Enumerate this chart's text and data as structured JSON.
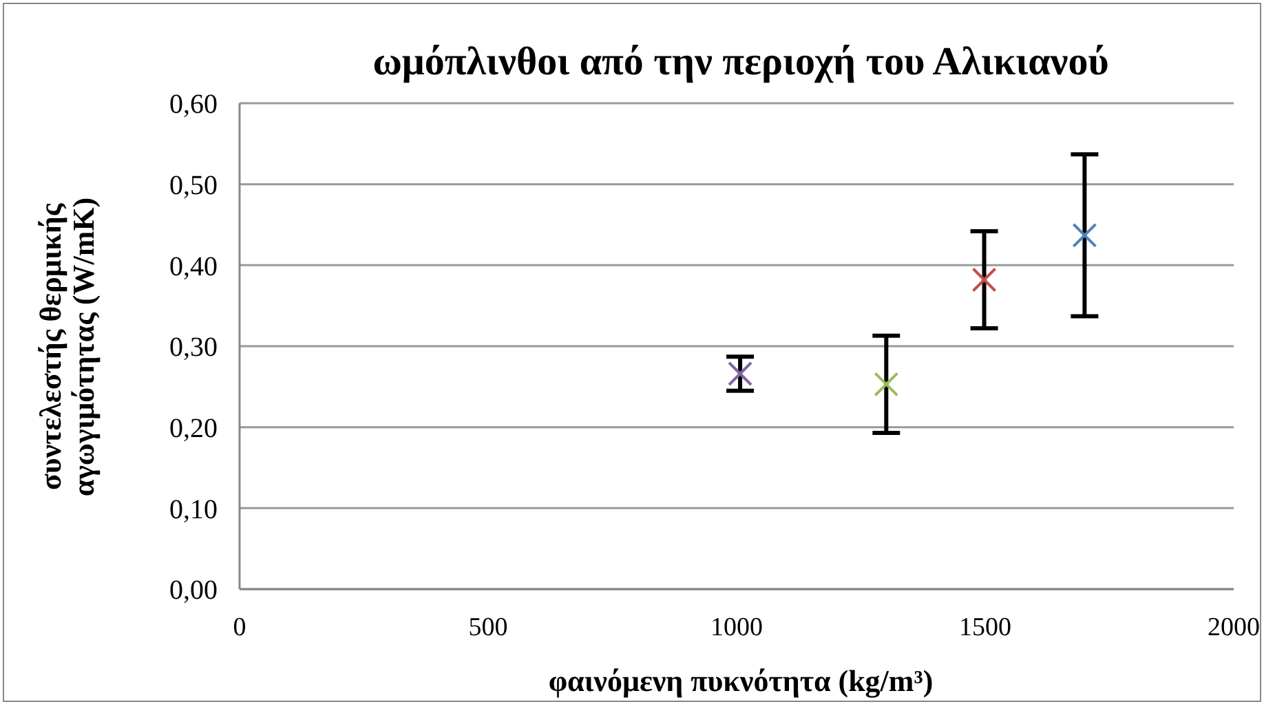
{
  "chart_data": {
    "type": "scatter",
    "title": "ωμόπλινθοι από την περιοχή του Αλικιανού",
    "xlabel": "φαινόμενη πυκνότητα    (kg/m³)",
    "ylabel": "συντελεστής θερμικής\nαγωγιμότητας   (W/mK)",
    "x": [
      1007,
      1301,
      1498,
      1700
    ],
    "values": [
      0.266,
      0.253,
      0.382,
      0.437
    ],
    "errors": [
      0.021,
      0.06,
      0.06,
      0.1
    ],
    "colors": [
      "#8064a2",
      "#9bbb59",
      "#c0504d",
      "#4f81bd"
    ],
    "marker": "cross",
    "grid": "y",
    "xlim": [
      0,
      2000
    ],
    "xticks": [
      0,
      500,
      1000,
      1500,
      2000
    ],
    "ylim": [
      0,
      0.6
    ],
    "yticks": [
      {
        "value": 0,
        "label": "0,00"
      },
      {
        "value": 0.1,
        "label": "0,10"
      },
      {
        "value": 0.2,
        "label": "0,20"
      },
      {
        "value": 0.3,
        "label": "0,30"
      },
      {
        "value": 0.4,
        "label": "0,40"
      },
      {
        "value": 0.5,
        "label": "0,50"
      },
      {
        "value": 0.6,
        "label": "0,60"
      }
    ]
  }
}
